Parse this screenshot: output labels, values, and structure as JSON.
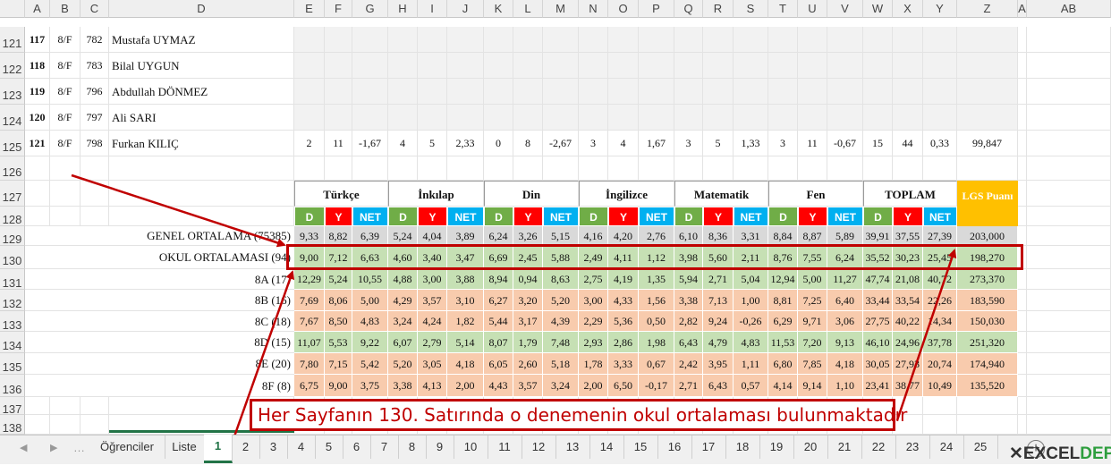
{
  "columns": [
    "A",
    "B",
    "C",
    "D",
    "E",
    "F",
    "G",
    "H",
    "I",
    "J",
    "K",
    "L",
    "M",
    "N",
    "O",
    "P",
    "Q",
    "R",
    "S",
    "T",
    "U",
    "V",
    "W",
    "X",
    "Y",
    "Z",
    "A",
    "AB"
  ],
  "students": [
    {
      "row": "121",
      "no": "117",
      "cls": "8/F",
      "num": "782",
      "name": "Mustafa UYMAZ",
      "scores": []
    },
    {
      "row": "122",
      "no": "118",
      "cls": "8/F",
      "num": "783",
      "name": "Bilal UYGUN",
      "scores": []
    },
    {
      "row": "123",
      "no": "119",
      "cls": "8/F",
      "num": "796",
      "name": "Abdullah DÖNMEZ",
      "scores": []
    },
    {
      "row": "124",
      "no": "120",
      "cls": "8/F",
      "num": "797",
      "name": "Ali SARI",
      "scores": []
    },
    {
      "row": "125",
      "no": "121",
      "cls": "8/F",
      "num": "798",
      "name": "Furkan KILIÇ",
      "scores": [
        "2",
        "11",
        "-1,67",
        "4",
        "5",
        "2,33",
        "0",
        "8",
        "-2,67",
        "3",
        "4",
        "1,67",
        "3",
        "5",
        "1,33",
        "3",
        "11",
        "-0,67",
        "15",
        "44",
        "0,33",
        "99,847"
      ]
    }
  ],
  "blank_rows": [
    "126",
    "137",
    "138"
  ],
  "header_rows": [
    "127",
    "128"
  ],
  "subjects": [
    "Türkçe",
    "İnkılap",
    "Din",
    "İngilizce",
    "Matematik",
    "Fen",
    "TOPLAM"
  ],
  "dyn": [
    "D",
    "Y",
    "NET"
  ],
  "lgs_label": "LGS Puanı",
  "colors": {
    "d": "#70ad47",
    "y": "#ff0000",
    "net": "#00b0f0",
    "lgs": "#ffc000",
    "green": "#c6e0b4",
    "red": "#f8cbad",
    "gray": "#d9d9d9",
    "box": "#c00000",
    "arrow": "#c00000"
  },
  "averages": [
    {
      "row": "129",
      "label": "GENEL ORTALAMA (75385)",
      "tone": "gray",
      "values": [
        "9,33",
        "8,82",
        "6,39",
        "5,24",
        "4,04",
        "3,89",
        "6,24",
        "3,26",
        "5,15",
        "4,16",
        "4,20",
        "2,76",
        "6,10",
        "8,36",
        "3,31",
        "8,84",
        "8,87",
        "5,89",
        "39,91",
        "37,55",
        "27,39",
        "203,000"
      ]
    },
    {
      "row": "130",
      "label": "OKUL ORTALAMASI (94)",
      "tone": "green",
      "values": [
        "9,00",
        "7,12",
        "6,63",
        "4,60",
        "3,40",
        "3,47",
        "6,69",
        "2,45",
        "5,88",
        "2,49",
        "4,11",
        "1,12",
        "3,98",
        "5,60",
        "2,11",
        "8,76",
        "7,55",
        "6,24",
        "35,52",
        "30,23",
        "25,45",
        "198,270"
      ]
    },
    {
      "row": "131",
      "label": "8A (17)",
      "tone": "green",
      "values": [
        "12,29",
        "5,24",
        "10,55",
        "4,88",
        "3,00",
        "3,88",
        "8,94",
        "0,94",
        "8,63",
        "2,75",
        "4,19",
        "1,35",
        "5,94",
        "2,71",
        "5,04",
        "12,94",
        "5,00",
        "11,27",
        "47,74",
        "21,08",
        "40,72",
        "273,370"
      ]
    },
    {
      "row": "132",
      "label": "8B (16)",
      "tone": "red",
      "values": [
        "7,69",
        "8,06",
        "5,00",
        "4,29",
        "3,57",
        "3,10",
        "6,27",
        "3,20",
        "5,20",
        "3,00",
        "4,33",
        "1,56",
        "3,38",
        "7,13",
        "1,00",
        "8,81",
        "7,25",
        "6,40",
        "33,44",
        "33,54",
        "22,26",
        "183,590"
      ]
    },
    {
      "row": "133",
      "label": "8C (18)",
      "tone": "red",
      "values": [
        "7,67",
        "8,50",
        "4,83",
        "3,24",
        "4,24",
        "1,82",
        "5,44",
        "3,17",
        "4,39",
        "2,29",
        "5,36",
        "0,50",
        "2,82",
        "9,24",
        "-0,26",
        "6,29",
        "9,71",
        "3,06",
        "27,75",
        "40,22",
        "14,34",
        "150,030"
      ]
    },
    {
      "row": "134",
      "label": "8D (15)",
      "tone": "green",
      "values": [
        "11,07",
        "5,53",
        "9,22",
        "6,07",
        "2,79",
        "5,14",
        "8,07",
        "1,79",
        "7,48",
        "2,93",
        "2,86",
        "1,98",
        "6,43",
        "4,79",
        "4,83",
        "11,53",
        "7,20",
        "9,13",
        "46,10",
        "24,96",
        "37,78",
        "251,320"
      ]
    },
    {
      "row": "135",
      "label": "8E (20)",
      "tone": "red",
      "values": [
        "7,80",
        "7,15",
        "5,42",
        "5,20",
        "3,05",
        "4,18",
        "6,05",
        "2,60",
        "5,18",
        "1,78",
        "3,33",
        "0,67",
        "2,42",
        "3,95",
        "1,11",
        "6,80",
        "7,85",
        "4,18",
        "30,05",
        "27,93",
        "20,74",
        "174,940"
      ]
    },
    {
      "row": "136",
      "label": "8F (8)",
      "tone": "red",
      "values": [
        "6,75",
        "9,00",
        "3,75",
        "3,38",
        "4,13",
        "2,00",
        "4,43",
        "3,57",
        "3,24",
        "2,00",
        "6,50",
        "-0,17",
        "2,71",
        "6,43",
        "0,57",
        "4,14",
        "9,14",
        "1,10",
        "23,41",
        "38,77",
        "10,49",
        "135,520"
      ]
    }
  ],
  "annotation": "Her Sayfanın 130. Satırında o denemenin okul ortalaması bulunmaktadır",
  "sheet_tabs": [
    "Öğrenciler",
    "Liste",
    "1",
    "2",
    "3",
    "4",
    "5",
    "6",
    "7",
    "8",
    "9",
    "10",
    "11",
    "12",
    "13",
    "14",
    "15",
    "16",
    "17",
    "18",
    "19",
    "20",
    "21",
    "22",
    "23",
    "24",
    "25"
  ],
  "active_tab": "1",
  "watermark": "EXCELDEPO"
}
